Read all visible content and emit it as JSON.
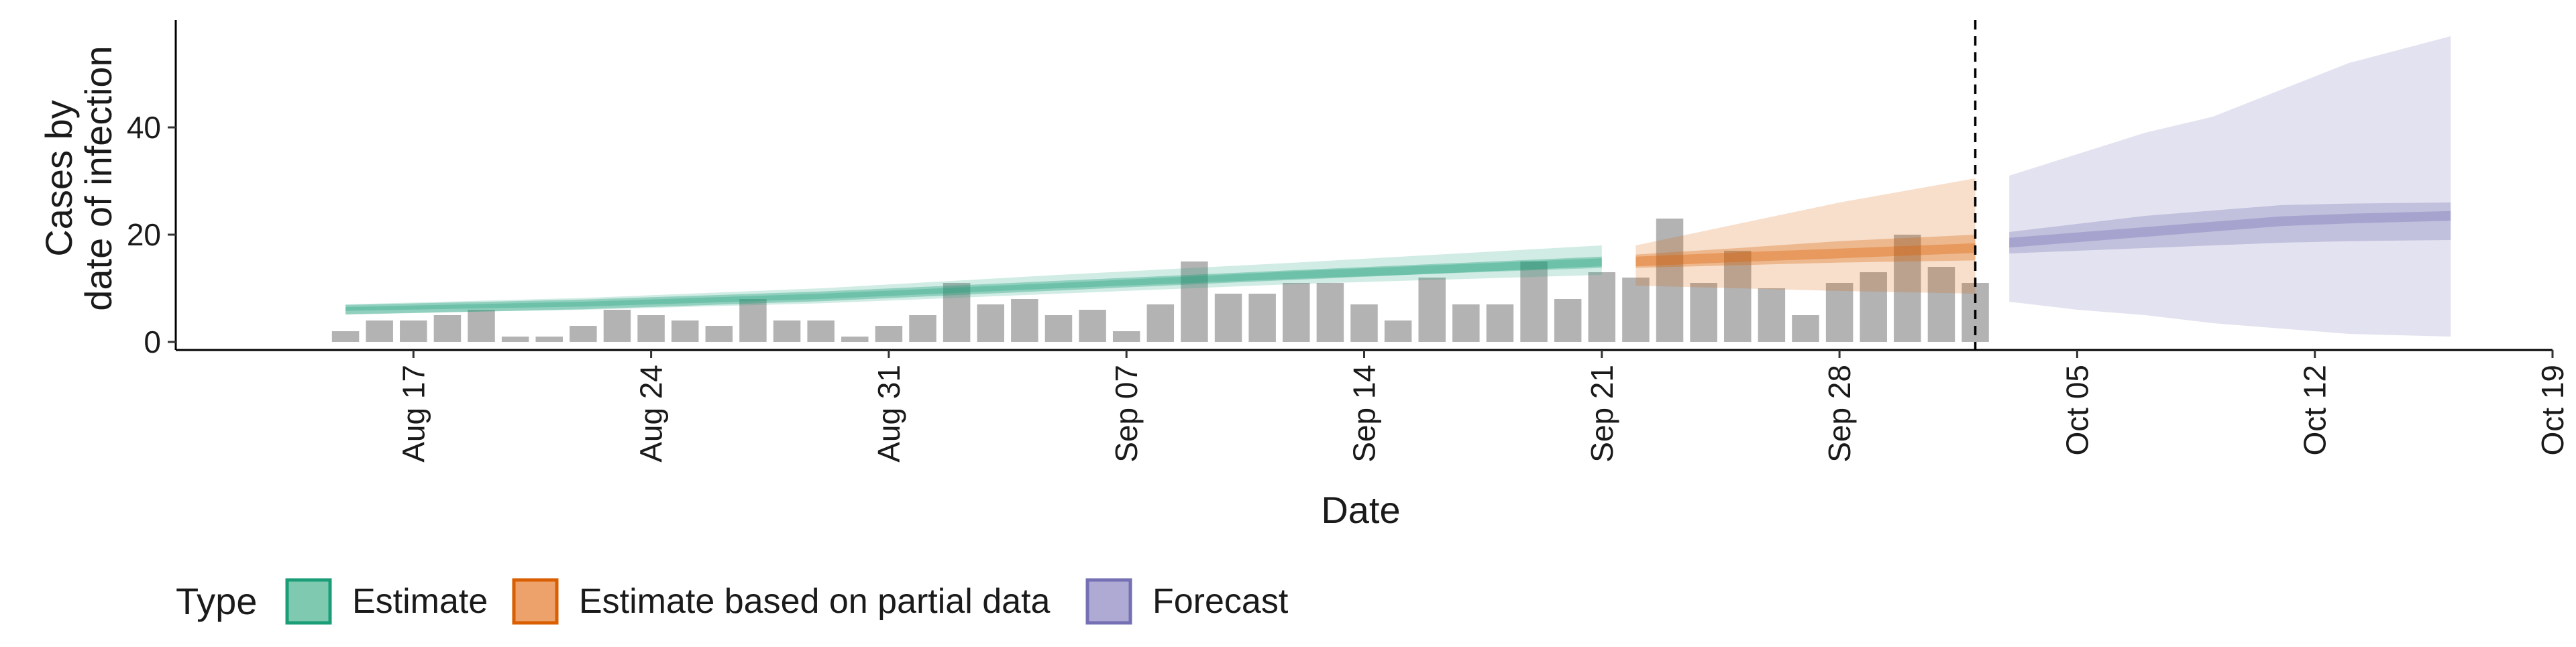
{
  "chart_data": {
    "type": "bar",
    "xlabel": "Date",
    "ylabel_lines": [
      "Cases by",
      "date of infection"
    ],
    "xlim": [
      "2021-08-10",
      "2021-10-19"
    ],
    "ylim": [
      -1.5,
      60
    ],
    "x_ticks": [
      {
        "date": "2021-08-17",
        "label": "Aug 17"
      },
      {
        "date": "2021-08-24",
        "label": "Aug 24"
      },
      {
        "date": "2021-08-31",
        "label": "Aug 31"
      },
      {
        "date": "2021-09-07",
        "label": "Sep 07"
      },
      {
        "date": "2021-09-14",
        "label": "Sep 14"
      },
      {
        "date": "2021-09-21",
        "label": "Sep 21"
      },
      {
        "date": "2021-09-28",
        "label": "Sep 28"
      },
      {
        "date": "2021-10-05",
        "label": "Oct 05"
      },
      {
        "date": "2021-10-12",
        "label": "Oct 12"
      },
      {
        "date": "2021-10-19",
        "label": "Oct 19"
      }
    ],
    "y_ticks": [
      0,
      20,
      40
    ],
    "reference_line_date": "2021-10-02",
    "bars": {
      "start_date": "2021-08-15",
      "color": "#b3b3b3",
      "values": [
        2,
        4,
        4,
        5,
        6,
        1,
        1,
        3,
        6,
        5,
        4,
        3,
        8,
        4,
        4,
        1,
        3,
        5,
        11,
        7,
        8,
        5,
        6,
        2,
        7,
        15,
        9,
        9,
        11,
        11,
        7,
        4,
        12,
        7,
        7,
        15,
        8,
        13,
        12,
        23,
        11,
        17,
        10,
        5,
        11,
        13,
        20,
        14,
        11
      ]
    },
    "legend": {
      "title": "Type",
      "position": "bottom",
      "items": [
        {
          "label": "Estimate",
          "fill": "#7ec9b0",
          "stroke": "#1b9e77"
        },
        {
          "label": "Estimate based on partial data",
          "fill": "#eda26b",
          "stroke": "#d95f02"
        },
        {
          "label": "Forecast",
          "fill": "#aeaad3",
          "stroke": "#7570b3"
        }
      ]
    },
    "series": [
      {
        "name": "Estimate",
        "color": "#1b9e77",
        "x": [
          "2021-08-15",
          "2021-08-22",
          "2021-08-29",
          "2021-09-05",
          "2021-09-12",
          "2021-09-21"
        ],
        "median": [
          6.0,
          7.0,
          8.5,
          10.5,
          12.5,
          15.0
        ],
        "lower_50": [
          5.8,
          6.6,
          8.0,
          10.0,
          11.8,
          13.8
        ],
        "upper_50": [
          6.5,
          7.5,
          9.0,
          11.0,
          13.2,
          15.6
        ],
        "lower_90": [
          5.2,
          6.0,
          7.2,
          9.0,
          10.8,
          12.5
        ],
        "upper_90": [
          7.0,
          8.2,
          10.0,
          12.5,
          14.8,
          18.0
        ]
      },
      {
        "name": "Estimate based on partial data",
        "color": "#d95f02",
        "x": [
          "2021-09-22",
          "2021-09-25",
          "2021-09-28",
          "2021-10-02"
        ],
        "median": [
          15.0,
          15.8,
          16.5,
          17.5
        ],
        "lower_50": [
          13.8,
          14.3,
          14.8,
          15.2
        ],
        "upper_50": [
          16.3,
          17.5,
          18.8,
          20.0
        ],
        "lower_90": [
          10.5,
          10.0,
          9.5,
          9.0
        ],
        "upper_90": [
          18.0,
          22.0,
          26.0,
          30.5
        ]
      },
      {
        "name": "Forecast",
        "color": "#7570b3",
        "x": [
          "2021-10-03",
          "2021-10-05",
          "2021-10-07",
          "2021-10-09",
          "2021-10-11",
          "2021-10-13",
          "2021-10-16"
        ],
        "median": [
          18.5,
          19.5,
          20.5,
          21.5,
          22.5,
          23.0,
          23.5
        ],
        "lower_50": [
          16.5,
          17.0,
          17.5,
          18.0,
          18.5,
          18.8,
          19.0
        ],
        "upper_50": [
          20.5,
          22.0,
          23.5,
          24.5,
          25.5,
          25.8,
          26.0
        ],
        "lower_90": [
          7.5,
          6.0,
          5.0,
          3.5,
          2.5,
          1.5,
          1.0
        ],
        "upper_90": [
          31.0,
          35.0,
          39.0,
          42.0,
          47.0,
          52.0,
          57.0
        ]
      }
    ]
  }
}
